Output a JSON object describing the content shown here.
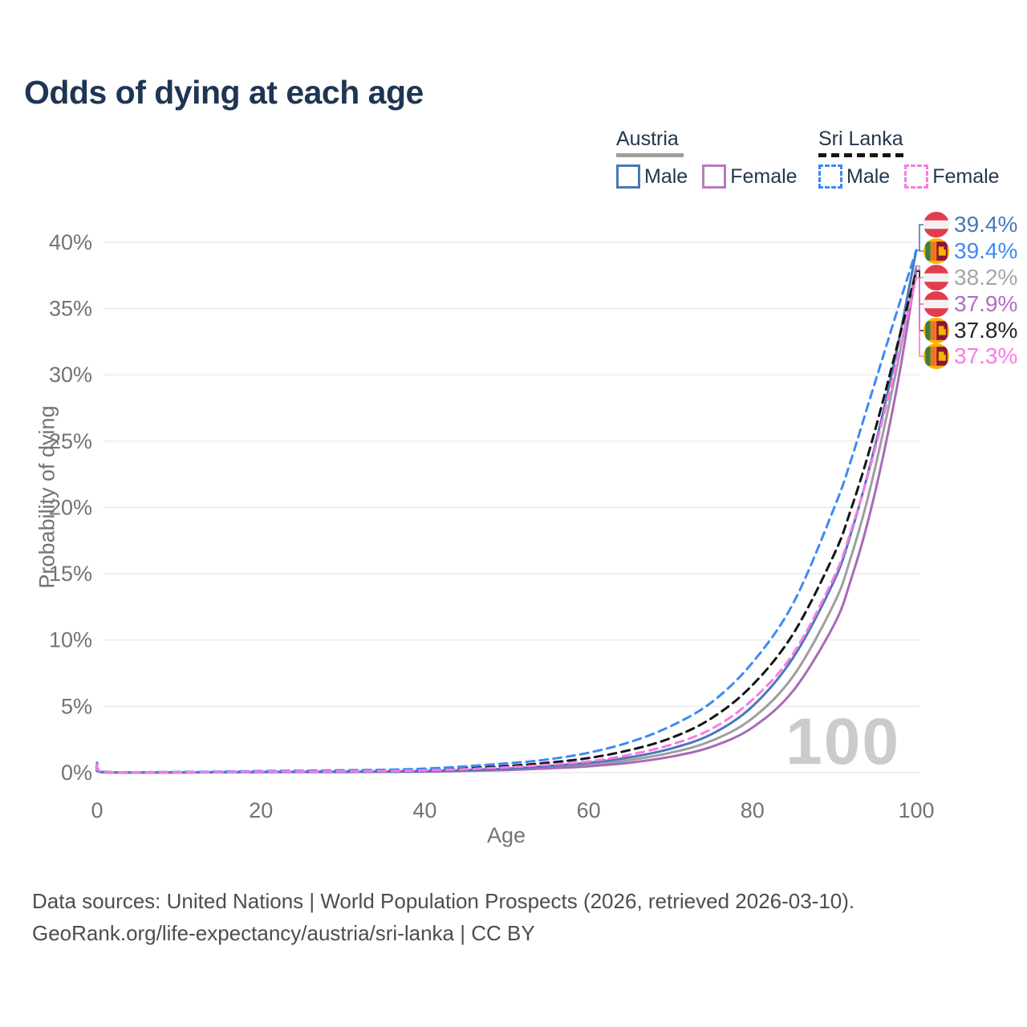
{
  "title": "Odds of dying at each age",
  "legend": {
    "austria": {
      "label": "Austria",
      "male_label": "Male",
      "female_label": "Female",
      "combined_color": "#9e9e9e",
      "male_color": "#4878b9",
      "female_color": "#bb79bd"
    },
    "sri_lanka": {
      "label": "Sri Lanka",
      "male_label": "Male",
      "female_label": "Female",
      "combined_color": "#141414",
      "male_color": "#3d8af5",
      "female_color": "#f97ae3"
    }
  },
  "watermark": "100",
  "footer": {
    "line1": "Data sources: United Nations | World Population Prospects (2026, retrieved 2026-03-10).",
    "line2": "GeoRank.org/life-expectancy/austria/sri-lanka | CC BY"
  },
  "chart_data": {
    "type": "line",
    "title": "Odds of dying at each age",
    "xlabel": "Age",
    "ylabel": "Probability of dying",
    "xlim": [
      0,
      100
    ],
    "ylim": [
      0,
      40
    ],
    "xticks": [
      0,
      20,
      40,
      60,
      80,
      100
    ],
    "yticks": [
      0,
      5,
      10,
      15,
      20,
      25,
      30,
      35,
      40
    ],
    "ytick_suffix": "%",
    "grid": true,
    "legend_position": "top-right",
    "x": [
      0,
      1,
      10,
      20,
      30,
      40,
      50,
      55,
      60,
      65,
      70,
      75,
      80,
      85,
      90,
      92,
      94,
      96,
      98,
      100
    ],
    "series": [
      {
        "name": "Austria Both sexes",
        "country": "Austria",
        "sex": "both",
        "style": "solid",
        "color": "#9e9e9e",
        "values": [
          0.34,
          0.03,
          0.02,
          0.05,
          0.07,
          0.1,
          0.25,
          0.4,
          0.6,
          0.95,
          1.5,
          2.4,
          4.1,
          7.3,
          12.8,
          16.2,
          20.5,
          25.8,
          31.7,
          38.2
        ]
      },
      {
        "name": "Austria Female",
        "country": "Austria",
        "sex": "female",
        "style": "solid",
        "color": "#a76ab8",
        "values": [
          0.3,
          0.02,
          0.015,
          0.035,
          0.05,
          0.08,
          0.2,
          0.32,
          0.48,
          0.75,
          1.2,
          1.95,
          3.4,
          6.2,
          11.2,
          14.5,
          18.7,
          24.0,
          30.3,
          37.9
        ]
      },
      {
        "name": "Austria Male",
        "country": "Austria",
        "sex": "male",
        "style": "solid",
        "color": "#4878b9",
        "values": [
          0.38,
          0.03,
          0.02,
          0.06,
          0.08,
          0.12,
          0.3,
          0.5,
          0.75,
          1.15,
          1.8,
          2.9,
          5.0,
          8.7,
          14.5,
          18.0,
          22.3,
          27.3,
          33.0,
          39.4
        ]
      },
      {
        "name": "Sri Lanka Both sexes",
        "country": "Sri Lanka",
        "sex": "both",
        "style": "dashed",
        "color": "#141414",
        "values": [
          0.68,
          0.05,
          0.04,
          0.09,
          0.13,
          0.22,
          0.5,
          0.75,
          1.1,
          1.7,
          2.6,
          4.1,
          6.6,
          10.5,
          16.5,
          19.8,
          23.7,
          28.2,
          33.0,
          37.8
        ]
      },
      {
        "name": "Sri Lanka Male",
        "country": "Sri Lanka",
        "sex": "male",
        "style": "dashed",
        "color": "#3d8af5",
        "values": [
          0.75,
          0.06,
          0.05,
          0.12,
          0.18,
          0.3,
          0.7,
          1.0,
          1.5,
          2.3,
          3.5,
          5.3,
          8.3,
          12.8,
          20.0,
          23.5,
          27.5,
          31.5,
          35.5,
          39.4
        ]
      },
      {
        "name": "Sri Lanka Female",
        "country": "Sri Lanka",
        "sex": "female",
        "style": "dashed",
        "color": "#f97ae3",
        "values": [
          0.6,
          0.05,
          0.03,
          0.07,
          0.1,
          0.17,
          0.4,
          0.6,
          0.85,
          1.35,
          2.1,
          3.3,
          5.5,
          9.0,
          14.8,
          18.2,
          22.2,
          26.9,
          32.0,
          37.3
        ]
      }
    ],
    "end_labels": [
      {
        "value": "39.4%",
        "num": 39.4,
        "color": "#4878b9",
        "flag": "austria",
        "series": "Austria Male"
      },
      {
        "value": "39.4%",
        "num": 39.4,
        "color": "#3d8af5",
        "flag": "sri_lanka",
        "series": "Sri Lanka Male"
      },
      {
        "value": "38.2%",
        "num": 38.2,
        "color": "#a6a6a6",
        "flag": "austria",
        "series": "Austria Both sexes"
      },
      {
        "value": "37.9%",
        "num": 37.9,
        "color": "#b06cc4",
        "flag": "austria",
        "series": "Austria Female"
      },
      {
        "value": "37.8%",
        "num": 37.8,
        "color": "#262626",
        "flag": "sri_lanka",
        "series": "Sri Lanka Both sexes"
      },
      {
        "value": "37.3%",
        "num": 37.3,
        "color": "#f97ae3",
        "flag": "sri_lanka",
        "series": "Sri Lanka Female"
      }
    ]
  }
}
